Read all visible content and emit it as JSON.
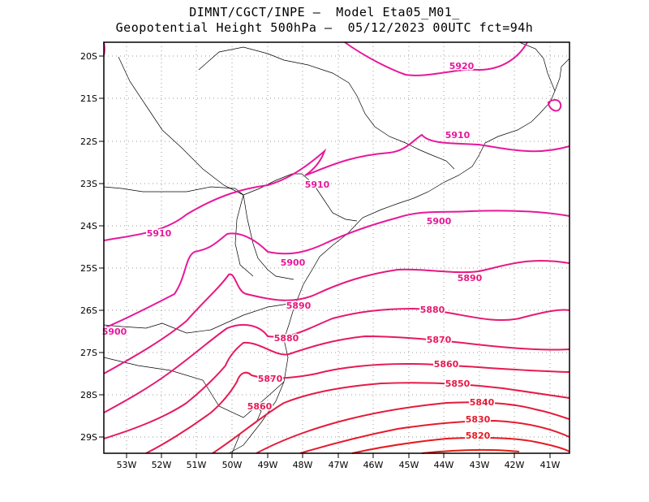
{
  "title": {
    "line1": "DIMNT/CGCT/INPE –  Model Eta05_M01_",
    "line2": "Geopotential Height 500hPa –  05/12/2023 00UTC fct=94h"
  },
  "map": {
    "lat_labels": [
      "20S",
      "21S",
      "22S",
      "23S",
      "24S",
      "25S",
      "26S",
      "27S",
      "28S",
      "29S"
    ],
    "lon_labels": [
      "53W",
      "52W",
      "51W",
      "50W",
      "49W",
      "48W",
      "47W",
      "46W",
      "45W",
      "44W",
      "43W",
      "42W",
      "41W"
    ],
    "grid": "dotted",
    "coastline_color": "#000000"
  },
  "contours": [
    {
      "value": "5920",
      "color": "#e6199a"
    },
    {
      "value": "5910",
      "color": "#e6199a"
    },
    {
      "value": "5900",
      "color": "#e6199a"
    },
    {
      "value": "5890",
      "color": "#e6197f"
    },
    {
      "value": "5880",
      "color": "#e61970"
    },
    {
      "value": "5870",
      "color": "#e61a60"
    },
    {
      "value": "5860",
      "color": "#e61a50"
    },
    {
      "value": "5850",
      "color": "#e61a45"
    },
    {
      "value": "5840",
      "color": "#e61a38"
    },
    {
      "value": "5830",
      "color": "#e61a2c"
    },
    {
      "value": "5820",
      "color": "#e61a20"
    }
  ]
}
